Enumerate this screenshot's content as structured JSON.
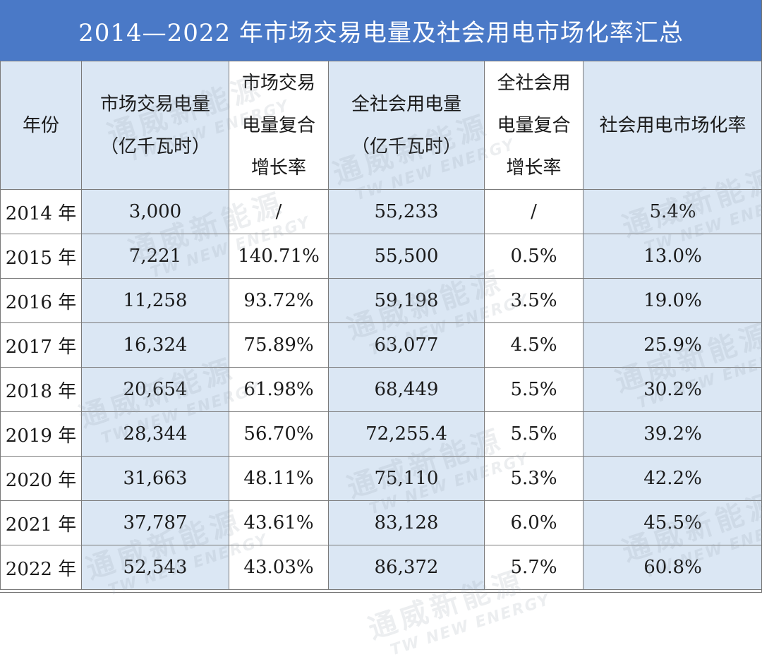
{
  "title": "2014—2022 年市场交易电量及社会用电市场化率汇总",
  "headers": [
    [
      "年份"
    ],
    [
      "市场交易电量",
      "（亿千瓦时）"
    ],
    [
      "市场交易",
      "电量复合",
      "增长率"
    ],
    [
      "全社会用电量",
      "（亿千瓦时）"
    ],
    [
      "全社会用",
      "电量复合",
      "增长率"
    ],
    [
      "社会用电市场化率"
    ]
  ],
  "rows": [
    [
      "2014 年",
      "3,000",
      "/",
      "55,233",
      "/",
      "5.4%"
    ],
    [
      "2015 年",
      "7,221",
      "140.71%",
      "55,500",
      "0.5%",
      "13.0%"
    ],
    [
      "2016 年",
      "11,258",
      "93.72%",
      "59,198",
      "3.5%",
      "19.0%"
    ],
    [
      "2017 年",
      "16,324",
      "75.89%",
      "63,077",
      "4.5%",
      "25.9%"
    ],
    [
      "2018 年",
      "20,654",
      "61.98%",
      "68,449",
      "5.5%",
      "30.2%"
    ],
    [
      "2019 年",
      "28,344",
      "56.70%",
      "72,255.4",
      "5.5%",
      "39.2%"
    ],
    [
      "2020 年",
      "31,663",
      "48.11%",
      "75,110",
      "5.3%",
      "42.2%"
    ],
    [
      "2021 年",
      "37,787",
      "43.61%",
      "83,128",
      "6.0%",
      "45.5%"
    ],
    [
      "2022 年",
      "52,543",
      "43.03%",
      "86,372",
      "5.7%",
      "60.8%"
    ]
  ],
  "watermark": {
    "cn": "通威新能源",
    "en": "TW NEW ENERGY"
  },
  "chart_data": {
    "type": "table",
    "title": "2014—2022 年市场交易电量及社会用电市场化率汇总",
    "columns": [
      "年份",
      "市场交易电量（亿千瓦时）",
      "市场交易电量复合增长率",
      "全社会用电量（亿千瓦时）",
      "全社会用电量复合增长率",
      "社会用电市场化率"
    ],
    "x": [
      2014,
      2015,
      2016,
      2017,
      2018,
      2019,
      2020,
      2021,
      2022
    ],
    "series": [
      {
        "name": "市场交易电量（亿千瓦时）",
        "values": [
          3000,
          7221,
          11258,
          16324,
          20654,
          28344,
          31663,
          37787,
          52543
        ]
      },
      {
        "name": "市场交易电量复合增长率",
        "values": [
          null,
          140.71,
          93.72,
          75.89,
          61.98,
          56.7,
          48.11,
          43.61,
          43.03
        ]
      },
      {
        "name": "全社会用电量（亿千瓦时）",
        "values": [
          55233,
          55500,
          59198,
          63077,
          68449,
          72255.4,
          75110,
          83128,
          86372
        ]
      },
      {
        "name": "全社会用电量复合增长率",
        "values": [
          null,
          0.5,
          3.5,
          4.5,
          5.5,
          5.5,
          5.3,
          6.0,
          5.7
        ]
      },
      {
        "name": "社会用电市场化率",
        "values": [
          5.4,
          13.0,
          19.0,
          25.9,
          30.2,
          39.2,
          42.2,
          45.5,
          60.8
        ]
      }
    ],
    "colors": {
      "title_bg": "#4a79c7",
      "title_fg": "#ffffff",
      "shaded_column": "#dbe7f4",
      "border": "#7a7a7a"
    }
  }
}
